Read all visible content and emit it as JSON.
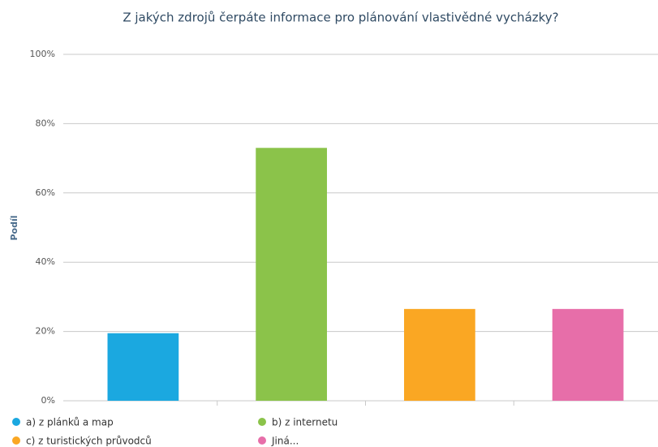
{
  "chart_data": {
    "type": "bar",
    "title": "Z jakých zdrojů čerpáte informace pro plánování vlastivědné vycházky?",
    "y_label": "Podíl",
    "categories": [
      "a) z plánků a map",
      "b) z internetu",
      "c) z turistických průvodců",
      "Jiná..."
    ],
    "values": [
      19.5,
      73,
      26.5,
      26.5
    ],
    "colors": [
      "#1ba8e0",
      "#8bc34a",
      "#faa723",
      "#e76ea9"
    ],
    "ylim": [
      0,
      100
    ],
    "yticks": [
      {
        "value": 0,
        "label": "0%"
      },
      {
        "value": 20,
        "label": "20%"
      },
      {
        "value": 40,
        "label": "40%"
      },
      {
        "value": 60,
        "label": "60%"
      },
      {
        "value": 80,
        "label": "80%"
      },
      {
        "value": 100,
        "label": "100%"
      }
    ],
    "grid": true,
    "legend": "bottom"
  }
}
